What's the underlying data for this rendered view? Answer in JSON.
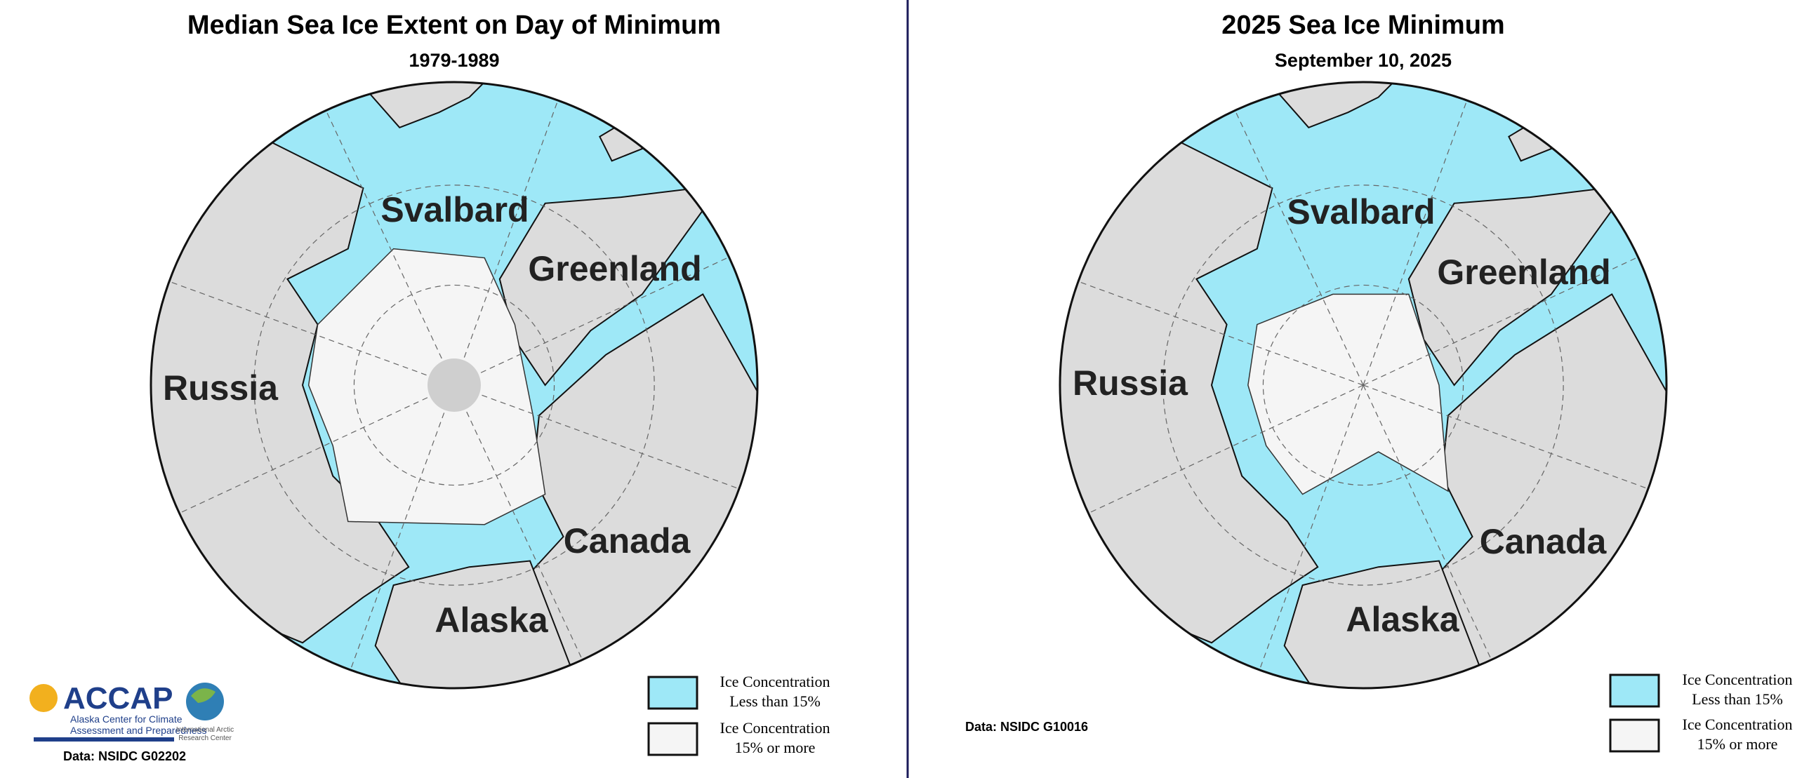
{
  "panels": [
    {
      "title": "Median Sea Ice Extent on Day of Minimum",
      "subtitle": "1979-1989",
      "labels": [
        "Svalbard",
        "Greenland",
        "Russia",
        "Canada",
        "Alaska"
      ],
      "legend": [
        {
          "line1": "Ice Concentration",
          "line2": "Less than 15%"
        },
        {
          "line1": "Ice Concentration",
          "line2": "15% or more"
        }
      ],
      "source": "Data: NSIDC G02202"
    },
    {
      "title": "2025 Sea Ice Minimum",
      "subtitle": "September 10, 2025",
      "labels": [
        "Svalbard",
        "Greenland",
        "Russia",
        "Canada",
        "Alaska"
      ],
      "legend": [
        {
          "line1": "Ice Concentration",
          "line2": "Less than 15%"
        },
        {
          "line1": "Ice Concentration",
          "line2": "15% or more"
        }
      ],
      "source": "Data: NSIDC G10016"
    }
  ],
  "logo": {
    "name": "ACCAP",
    "line1": "Alaska Center for Climate",
    "line2": "Assessment and Preparedness",
    "partner1": "International Arctic",
    "partner2": "Research Center"
  }
}
